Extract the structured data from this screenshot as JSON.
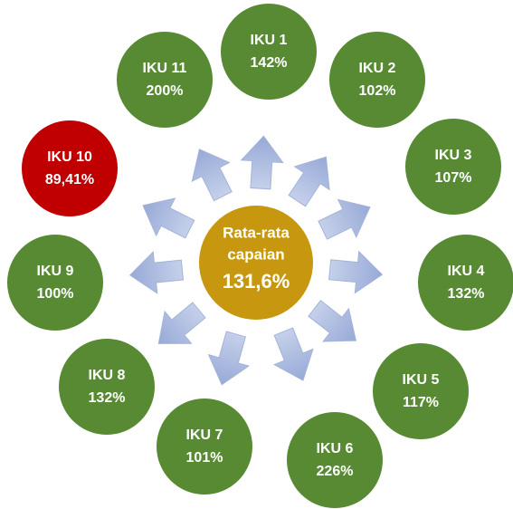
{
  "center": {
    "lines": [
      "Rata-rata",
      "capaian"
    ],
    "value": "131,6%"
  },
  "nodes": [
    {
      "label": "IKU 1",
      "value": "142%"
    },
    {
      "label": "IKU 2",
      "value": "102%"
    },
    {
      "label": "IKU 3",
      "value": "107%"
    },
    {
      "label": "IKU 4",
      "value": "132%"
    },
    {
      "label": "IKU 5",
      "value": "117%"
    },
    {
      "label": "IKU 6",
      "value": "226%"
    },
    {
      "label": "IKU 7",
      "value": "101%"
    },
    {
      "label": "IKU 8",
      "value": "132%"
    },
    {
      "label": "IKU 9",
      "value": "100%"
    },
    {
      "label": "IKU 10",
      "value": "89,41%"
    },
    {
      "label": "IKU 11",
      "value": "200%"
    }
  ]
}
